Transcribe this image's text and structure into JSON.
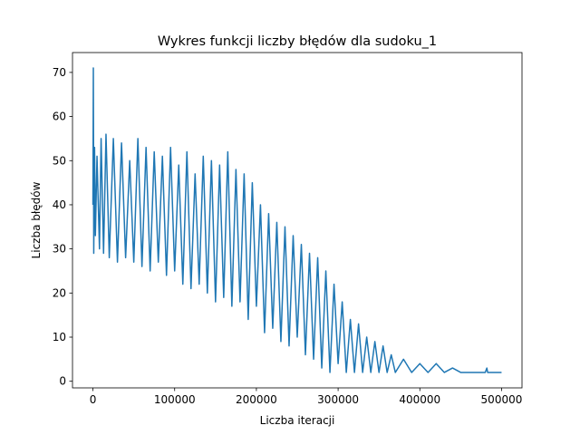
{
  "chart_data": {
    "type": "line",
    "title": "Wykres funkcji liczby błędów dla sudoku_1",
    "xlabel": "Liczba iteracji",
    "ylabel": "Liczba błędów",
    "xlim": [
      -25000,
      525000
    ],
    "ylim": [
      -1.5,
      74.5
    ],
    "xticks": [
      0,
      100000,
      200000,
      300000,
      400000,
      500000
    ],
    "yticks": [
      0,
      10,
      20,
      30,
      40,
      50,
      60,
      70
    ],
    "grid": false,
    "line_color": "#1f77b4",
    "series": [
      {
        "x": [
          0,
          500,
          1000,
          2000,
          3000,
          5000,
          8000,
          10000,
          13000,
          16000,
          20000,
          25000,
          30000,
          35000,
          40000,
          45000,
          50000,
          55000,
          60000,
          65000,
          70000,
          75000,
          80000,
          85000,
          90000,
          95000,
          100000,
          105000,
          110000,
          115000,
          120000,
          125000,
          130000,
          135000,
          140000,
          145000,
          150000,
          155000,
          160000,
          165000,
          170000,
          175000,
          180000,
          185000,
          190000,
          195000,
          200000,
          205000,
          210000,
          215000,
          220000,
          225000,
          230000,
          235000,
          240000,
          245000,
          250000,
          255000,
          260000,
          265000,
          270000,
          275000,
          280000,
          285000,
          290000,
          295000,
          300000,
          305000,
          310000,
          315000,
          320000,
          325000,
          330000,
          335000,
          340000,
          345000,
          350000,
          355000,
          360000,
          365000,
          370000,
          380000,
          390000,
          400000,
          410000,
          420000,
          430000,
          440000,
          450000,
          470000,
          480000,
          482000,
          483000,
          484000,
          490000,
          500000
        ],
        "y": [
          40,
          71,
          29,
          53,
          33,
          51,
          30,
          55,
          29,
          56,
          28,
          55,
          27,
          54,
          28,
          50,
          27,
          55,
          26,
          53,
          25,
          52,
          27,
          51,
          24,
          53,
          25,
          49,
          22,
          52,
          21,
          47,
          22,
          51,
          20,
          50,
          18,
          49,
          19,
          52,
          17,
          48,
          18,
          47,
          14,
          45,
          17,
          40,
          11,
          38,
          12,
          36,
          9,
          35,
          8,
          33,
          10,
          31,
          6,
          29,
          5,
          28,
          3,
          25,
          2,
          22,
          4,
          18,
          2,
          14,
          2,
          13,
          2,
          10,
          2,
          9,
          2,
          8,
          2,
          6,
          2,
          5,
          2,
          4,
          2,
          4,
          2,
          3,
          2,
          2,
          2,
          3,
          2,
          2,
          2,
          2
        ]
      }
    ]
  }
}
